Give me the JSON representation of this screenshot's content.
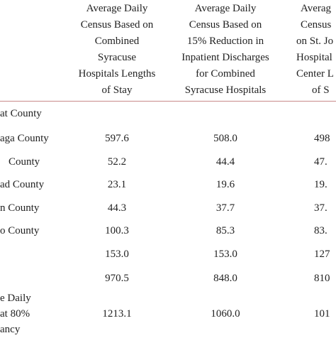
{
  "table": {
    "headers": [
      [
        "Average Daily",
        "Census Based on",
        "Combined",
        "Syracuse",
        "Hospitals Lengths",
        "of Stay"
      ],
      [
        "Average Daily",
        "Census Based on",
        "15% Reduction in",
        "Inpatient Discharges",
        "for Combined",
        "Syracuse Hospitals"
      ],
      [
        "Averag",
        "Census",
        "on St. Jo",
        "Hospital",
        "Center L",
        "of S"
      ]
    ],
    "rows": [
      {
        "label": [
          "at County"
        ],
        "cells": []
      },
      {
        "label": [
          "aga County"
        ],
        "cells": [
          "597.6",
          "508.0",
          "498"
        ]
      },
      {
        "label": [
          "County"
        ],
        "cells": [
          "52.2",
          "44.4",
          "47."
        ]
      },
      {
        "label": [
          "ad County"
        ],
        "cells": [
          "23.1",
          "19.6",
          "19."
        ]
      },
      {
        "label": [
          "n County"
        ],
        "cells": [
          "44.3",
          "37.7",
          "37."
        ]
      },
      {
        "label": [
          "o County"
        ],
        "cells": [
          "100.3",
          "85.3",
          "83."
        ]
      },
      {
        "label": [],
        "cells": [
          "153.0",
          "153.0",
          "127"
        ]
      },
      {
        "label": [],
        "cells": [
          "970.5",
          "848.0",
          "810"
        ]
      },
      {
        "label": [
          "e Daily",
          "at 80%",
          "ancy"
        ],
        "cells": [
          "1213.1",
          "1060.0",
          "101"
        ]
      }
    ]
  }
}
